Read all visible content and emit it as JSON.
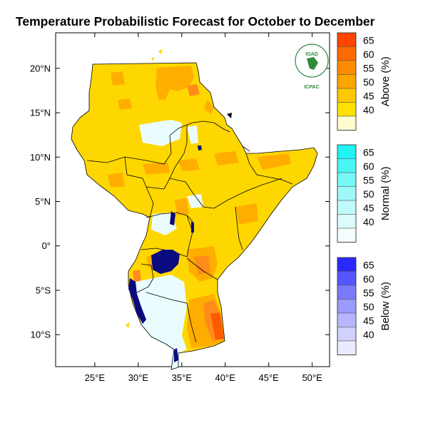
{
  "title": "Temperature Probabilistic Forecast for October to December",
  "logo": {
    "top_text": "IGAD",
    "bottom_text": "ICPAC",
    "green": "#2e8b3c"
  },
  "map": {
    "x_ticks": [
      {
        "value": 25,
        "label": "25°E"
      },
      {
        "value": 30,
        "label": "30°E"
      },
      {
        "value": 35,
        "label": "35°E"
      },
      {
        "value": 40,
        "label": "40°E"
      },
      {
        "value": 45,
        "label": "45°E"
      },
      {
        "value": 50,
        "label": "50°E"
      }
    ],
    "y_ticks": [
      {
        "value": 20,
        "label": "20°N"
      },
      {
        "value": 15,
        "label": "15°N"
      },
      {
        "value": 10,
        "label": "10°N"
      },
      {
        "value": 5,
        "label": "5°N"
      },
      {
        "value": 0,
        "label": "0°"
      },
      {
        "value": -5,
        "label": "5°S"
      },
      {
        "value": -10,
        "label": "10°S"
      }
    ],
    "lon_range": [
      20.5,
      52
    ],
    "lat_range": [
      -13.6,
      24
    ],
    "colors": {
      "above_45": "#ffd700",
      "above_50": "#ffae00",
      "above_55": "#ff8c1a",
      "above_60": "#ff5a00",
      "normal_light": "#eafcfd",
      "lakes": "#0a0a80"
    }
  },
  "legend": [
    {
      "name": "above",
      "title": "Above (%)",
      "levels": [
        "65",
        "60",
        "55",
        "50",
        "45",
        "40"
      ],
      "colors": [
        "#ff4500",
        "#ff6a00",
        "#ff8c00",
        "#ffa500",
        "#ffc800",
        "#ffe000",
        "#fffdd0"
      ]
    },
    {
      "name": "normal",
      "title": "Normal (%)",
      "levels": [
        "65",
        "60",
        "55",
        "50",
        "45",
        "40"
      ],
      "colors": [
        "#1ff3f3",
        "#4cf5f5",
        "#78f7f7",
        "#9ff9f9",
        "#c0fbfb",
        "#dcfcfc",
        "#f4fefe"
      ]
    },
    {
      "name": "below",
      "title": "Below (%)",
      "levels": [
        "65",
        "60",
        "55",
        "50",
        "45",
        "40"
      ],
      "colors": [
        "#2a2aff",
        "#5656ff",
        "#7a7aff",
        "#9a9aff",
        "#b7b7ff",
        "#d1d1ff",
        "#ebebff"
      ]
    }
  ]
}
